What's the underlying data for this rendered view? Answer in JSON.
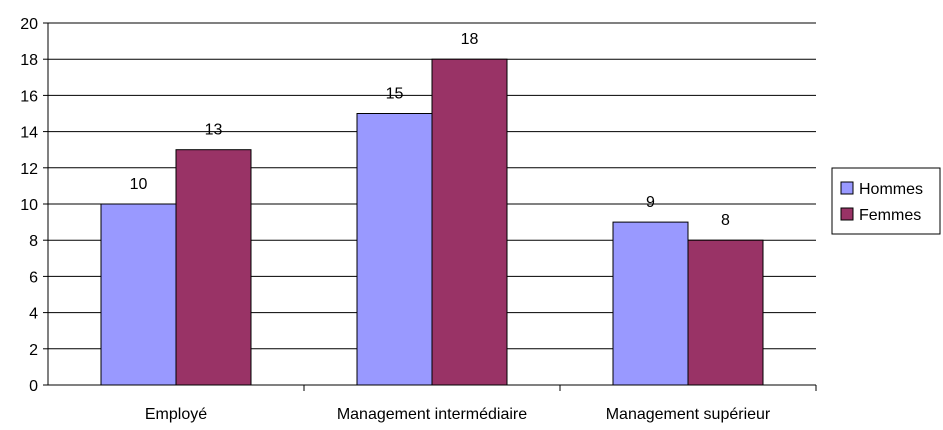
{
  "chart_data": {
    "type": "bar",
    "categories": [
      "Employé",
      "Management intermédiaire",
      "Management supérieur"
    ],
    "series": [
      {
        "name": "Hommes",
        "values": [
          10,
          15,
          9
        ],
        "color": "#9999FF"
      },
      {
        "name": "Femmes",
        "values": [
          13,
          18,
          8
        ],
        "color": "#993366"
      }
    ],
    "yticks": [
      0,
      2,
      4,
      6,
      8,
      10,
      12,
      14,
      16,
      18,
      20
    ],
    "ylim": [
      0,
      20
    ],
    "grid": true,
    "legend": "right",
    "data_labels": true
  }
}
